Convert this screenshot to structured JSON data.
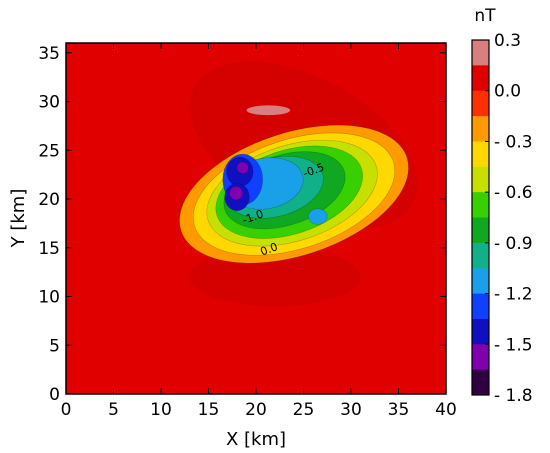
{
  "chart_data": {
    "type": "filled-contour",
    "xlabel": "X [km]",
    "ylabel": "Y [km]",
    "xlim": [
      0,
      40
    ],
    "ylim": [
      0,
      36
    ],
    "x_ticks": [
      0,
      5,
      10,
      15,
      20,
      25,
      30,
      35,
      40
    ],
    "y_ticks": [
      0,
      5,
      10,
      15,
      20,
      25,
      30,
      35
    ],
    "colorbar": {
      "unit": "nT",
      "range": [
        -1.8,
        0.3
      ],
      "tick_values": [
        0.3,
        0.0,
        -0.3,
        -0.6,
        -0.9,
        -1.2,
        -1.5,
        -1.8
      ],
      "tick_labels": [
        "0.3",
        "0.0",
        "- 0.3",
        "- 0.6",
        "- 0.9",
        "- 1.2",
        "- 1.5",
        "- 1.8"
      ],
      "levels": [
        {
          "lo": 0.15,
          "hi": 0.3,
          "color": "#d88080"
        },
        {
          "lo": 0.0,
          "hi": 0.15,
          "color": "#e00000"
        },
        {
          "lo": -0.15,
          "hi": 0.0,
          "color": "#ff3000"
        },
        {
          "lo": -0.3,
          "hi": -0.15,
          "color": "#ff9a00"
        },
        {
          "lo": -0.45,
          "hi": -0.3,
          "color": "#ffd800"
        },
        {
          "lo": -0.6,
          "hi": -0.45,
          "color": "#c8e000"
        },
        {
          "lo": -0.75,
          "hi": -0.6,
          "color": "#38d000"
        },
        {
          "lo": -0.9,
          "hi": -0.75,
          "color": "#10a820"
        },
        {
          "lo": -1.05,
          "hi": -0.9,
          "color": "#10b088"
        },
        {
          "lo": -1.2,
          "hi": -1.05,
          "color": "#1aa0e8"
        },
        {
          "lo": -1.35,
          "hi": -1.2,
          "color": "#1040ff"
        },
        {
          "lo": -1.5,
          "hi": -1.35,
          "color": "#1010c0"
        },
        {
          "lo": -1.65,
          "hi": -1.5,
          "color": "#8000b0"
        },
        {
          "lo": -1.8,
          "hi": -1.65,
          "color": "#300040"
        }
      ]
    },
    "contour_labels": [
      {
        "text": "-0.5",
        "x": 26.2,
        "y": 22.6
      },
      {
        "text": "-1.0",
        "x": 19.8,
        "y": 17.8
      },
      {
        "text": "0.0",
        "x": 21.5,
        "y": 14.5
      }
    ],
    "field_bands": [
      {
        "value": -0.2,
        "color": "#ff9a00",
        "cx": 24.0,
        "cy": 20.5,
        "rx": 12.5,
        "ry": 6.3,
        "rot": -18
      },
      {
        "value": -0.35,
        "color": "#ffd800",
        "cx": 24.0,
        "cy": 20.5,
        "rx": 11.0,
        "ry": 5.6,
        "rot": -18
      },
      {
        "value": -0.5,
        "color": "#c8e000",
        "cx": 23.8,
        "cy": 20.6,
        "rx": 9.3,
        "ry": 4.9,
        "rot": -18
      },
      {
        "value": -0.65,
        "color": "#38d000",
        "cx": 23.5,
        "cy": 20.7,
        "rx": 8.0,
        "ry": 4.3,
        "rot": -18
      },
      {
        "value": -0.8,
        "color": "#10a820",
        "cx": 23.0,
        "cy": 20.9,
        "rx": 6.6,
        "ry": 3.6,
        "rot": -18
      },
      {
        "value": -0.95,
        "color": "#10b088",
        "cx": 22.0,
        "cy": 21.2,
        "rx": 5.2,
        "ry": 3.0,
        "rot": -15
      },
      {
        "value": -1.1,
        "color": "#1aa0e8",
        "cx": 21.0,
        "cy": 21.6,
        "rx": 4.0,
        "ry": 2.6,
        "rot": -10
      },
      {
        "value": -1.3,
        "color": "#1040ff",
        "cx": 18.6,
        "cy": 22.0,
        "rx": 2.1,
        "ry": 2.6,
        "rot": 0
      },
      {
        "value": -1.45,
        "color": "#1010c0",
        "cx": 18.3,
        "cy": 22.8,
        "rx": 1.4,
        "ry": 1.5,
        "rot": 0
      },
      {
        "value": -1.45,
        "color": "#1010c0",
        "cx": 18.0,
        "cy": 20.2,
        "rx": 1.3,
        "ry": 1.4,
        "rot": 0
      },
      {
        "value": -1.6,
        "color": "#8000b0",
        "cx": 17.9,
        "cy": 20.6,
        "rx": 0.7,
        "ry": 0.7,
        "rot": 0
      },
      {
        "value": -1.6,
        "color": "#8000b0",
        "cx": 18.6,
        "cy": 23.2,
        "rx": 0.6,
        "ry": 0.6,
        "rot": 0
      },
      {
        "value": -1.1,
        "color": "#1aa0e8",
        "cx": 26.5,
        "cy": 18.2,
        "rx": 1.0,
        "ry": 0.8,
        "rot": 0
      }
    ],
    "positive_lobes": [
      {
        "value": 0.2,
        "color": "#d88080",
        "cx": 21.3,
        "cy": 29.1,
        "rx": 2.3,
        "ry": 0.5,
        "rot": 0
      }
    ]
  }
}
